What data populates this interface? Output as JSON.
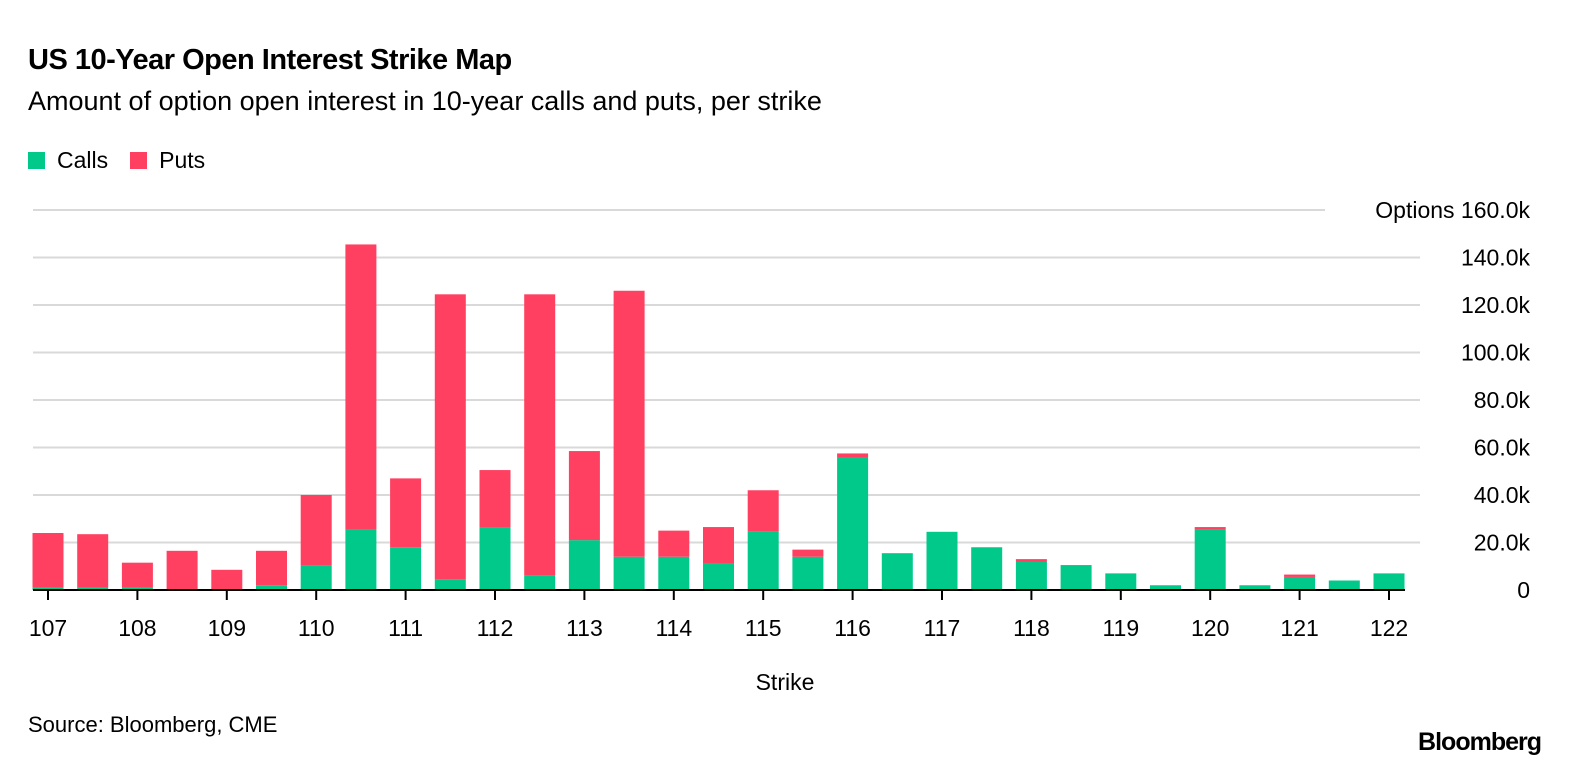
{
  "header": {
    "title": "US 10-Year Open Interest Strike Map",
    "subtitle": "Amount of option open interest in 10-year calls and puts, per strike"
  },
  "footer": {
    "source": "Source: Bloomberg, CME",
    "logo": "Bloomberg"
  },
  "colors": {
    "calls": "#00c98a",
    "puts": "#ff4060",
    "grid": "#d9d9d9",
    "axis": "#000000"
  },
  "chart_data": {
    "type": "bar",
    "stacked": true,
    "title": "US 10-Year Open Interest Strike Map",
    "subtitle": "Amount of option open interest in 10-year calls and puts, per strike",
    "xlabel": "Strike",
    "ylabel": "Options",
    "ylim": [
      0,
      160000
    ],
    "grid": true,
    "legend_position": "top-left",
    "yticks": [
      0,
      20000,
      40000,
      60000,
      80000,
      100000,
      120000,
      140000,
      160000
    ],
    "ytick_labels": [
      "0",
      "20.0k",
      "40.0k",
      "60.0k",
      "80.0k",
      "100.0k",
      "120.0k",
      "140.0k",
      "Options 160.0k"
    ],
    "xtick_labels": [
      "107",
      "108",
      "109",
      "110",
      "111",
      "112",
      "113",
      "114",
      "115",
      "116",
      "117",
      "118",
      "119",
      "120",
      "121",
      "122"
    ],
    "categories": [
      107,
      107.5,
      108,
      108.5,
      109,
      109.5,
      110,
      110.5,
      111,
      111.5,
      112,
      112.5,
      113,
      113.5,
      114,
      114.5,
      115,
      115.5,
      116,
      116.5,
      117,
      117.5,
      118,
      118.5,
      119,
      119.5,
      120,
      120.5,
      121,
      121.5,
      122
    ],
    "series": [
      {
        "name": "Calls",
        "values": [
          1000,
          1000,
          1000,
          0,
          0,
          2000,
          10500,
          25500,
          18000,
          4500,
          26500,
          6000,
          21000,
          14000,
          14000,
          11000,
          24500,
          14000,
          56000,
          15500,
          24500,
          18000,
          12000,
          10500,
          7000,
          2000,
          25500,
          2000,
          5500,
          4000,
          7000
        ]
      },
      {
        "name": "Puts",
        "values": [
          23000,
          22500,
          10500,
          16500,
          8500,
          14500,
          29500,
          120000,
          29000,
          120000,
          24000,
          118500,
          37500,
          112000,
          11000,
          15500,
          17500,
          3000,
          1500,
          0,
          0,
          0,
          1000,
          0,
          0,
          0,
          1000,
          0,
          1000,
          0,
          0
        ]
      }
    ]
  }
}
